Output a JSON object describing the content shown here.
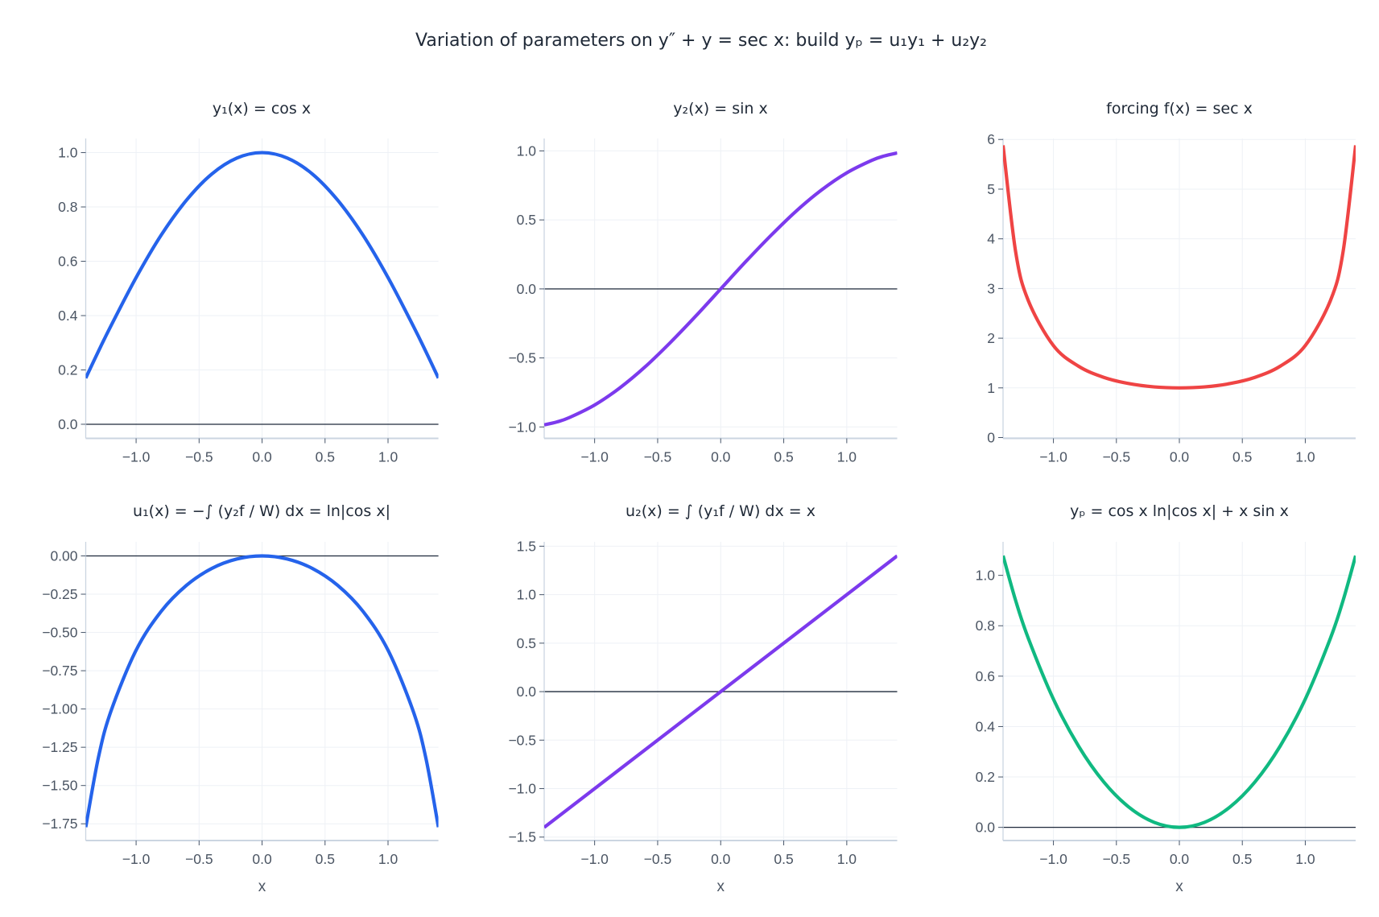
{
  "title": "Variation of parameters on  y″ + y = sec x:  build yₚ = u₁y₁ + u₂y₂",
  "chart_data": [
    {
      "type": "line",
      "title": "y₁(x) = cos x",
      "xlabel": "",
      "color": "#2563eb",
      "x": [
        -1.4,
        -1.3,
        -1.2,
        -1.0,
        -0.8,
        -0.6,
        -0.4,
        -0.2,
        0,
        0.2,
        0.4,
        0.6,
        0.8,
        1.0,
        1.2,
        1.3,
        1.4
      ],
      "y": [
        0.17,
        0.268,
        0.362,
        0.54,
        0.697,
        0.825,
        0.921,
        0.98,
        1.0,
        0.98,
        0.921,
        0.825,
        0.697,
        0.54,
        0.362,
        0.268,
        0.17
      ],
      "xlim": [
        -1.4,
        1.4
      ],
      "ylim": [
        -0.049,
        1.052
      ],
      "xticks": [
        -1.0,
        -0.5,
        0.0,
        0.5,
        1.0
      ],
      "yticks": [
        0.0,
        0.2,
        0.4,
        0.6,
        0.8,
        1.0
      ],
      "ydecimals": 1,
      "grid": true,
      "zeroline": true
    },
    {
      "type": "line",
      "title": "y₂(x) = sin x",
      "xlabel": "",
      "color": "#7c3aed",
      "x": [
        -1.4,
        -1.3,
        -1.2,
        -1.0,
        -0.8,
        -0.6,
        -0.4,
        -0.2,
        0,
        0.2,
        0.4,
        0.6,
        0.8,
        1.0,
        1.2,
        1.3,
        1.4
      ],
      "y": [
        -0.985,
        -0.964,
        -0.932,
        -0.841,
        -0.717,
        -0.565,
        -0.389,
        -0.199,
        0,
        0.199,
        0.389,
        0.565,
        0.717,
        0.841,
        0.932,
        0.964,
        0.985
      ],
      "xlim": [
        -1.4,
        1.4
      ],
      "ylim": [
        -1.077,
        1.09
      ],
      "xticks": [
        -1.0,
        -0.5,
        0.0,
        0.5,
        1.0
      ],
      "yticks": [
        -1.0,
        -0.5,
        0.0,
        0.5,
        1.0
      ],
      "ydecimals": 1,
      "grid": true,
      "zeroline": true
    },
    {
      "type": "line",
      "title": "forcing  f(x) = sec x",
      "xlabel": "",
      "color": "#ef4444",
      "x": [
        -1.4,
        -1.3,
        -1.2,
        -1.0,
        -0.8,
        -0.6,
        -0.4,
        -0.2,
        0,
        0.2,
        0.4,
        0.6,
        0.8,
        1.0,
        1.2,
        1.3,
        1.4
      ],
      "y": [
        5.883,
        3.738,
        2.76,
        1.851,
        1.435,
        1.212,
        1.086,
        1.02,
        1.0,
        1.02,
        1.086,
        1.212,
        1.435,
        1.851,
        2.76,
        3.738,
        5.883
      ],
      "xlim": [
        -1.4,
        1.4
      ],
      "ylim": [
        0,
        6.02
      ],
      "xticks": [
        -1.0,
        -0.5,
        0.0,
        0.5,
        1.0
      ],
      "yticks": [
        0,
        1,
        2,
        3,
        4,
        5,
        6
      ],
      "ydecimals": 0,
      "grid": true,
      "zeroline": false
    },
    {
      "type": "line",
      "title": "u₁(x) = −∫ (y₂f / W) dx = ln|cos x|",
      "xlabel": "x",
      "color": "#2563eb",
      "x": [
        -1.4,
        -1.3,
        -1.2,
        -1.0,
        -0.8,
        -0.6,
        -0.4,
        -0.2,
        0,
        0.2,
        0.4,
        0.6,
        0.8,
        1.0,
        1.2,
        1.3,
        1.4
      ],
      "y": [
        -1.772,
        -1.319,
        -1.015,
        -0.616,
        -0.361,
        -0.192,
        -0.082,
        -0.02,
        0,
        -0.02,
        -0.082,
        -0.192,
        -0.361,
        -0.616,
        -1.015,
        -1.319,
        -1.772
      ],
      "xlim": [
        -1.4,
        1.4
      ],
      "ylim": [
        -1.854,
        0.092
      ],
      "xticks": [
        -1.0,
        -0.5,
        0.0,
        0.5,
        1.0
      ],
      "yticks": [
        -1.75,
        -1.5,
        -1.25,
        -1.0,
        -0.75,
        -0.5,
        -0.25,
        0.0
      ],
      "ydecimals": 2,
      "grid": true,
      "zeroline": true
    },
    {
      "type": "line",
      "title": "u₂(x) = ∫ (y₁f / W) dx = x",
      "xlabel": "x",
      "color": "#7c3aed",
      "x": [
        -1.4,
        1.4
      ],
      "y": [
        -1.4,
        1.4
      ],
      "xlim": [
        -1.4,
        1.4
      ],
      "ylim": [
        -1.527,
        1.545
      ],
      "xticks": [
        -1.0,
        -0.5,
        0.0,
        0.5,
        1.0
      ],
      "yticks": [
        -1.5,
        -1.0,
        -0.5,
        0.0,
        0.5,
        1.0,
        1.5
      ],
      "ydecimals": 1,
      "grid": true,
      "zeroline": true
    },
    {
      "type": "line",
      "title": "yₚ = cos x ln|cos x| + x sin x",
      "xlabel": "x",
      "color": "#10b981",
      "x": [
        -1.4,
        -1.3,
        -1.2,
        -1.0,
        -0.8,
        -0.6,
        -0.4,
        -0.2,
        0,
        0.2,
        0.4,
        0.6,
        0.8,
        1.0,
        1.2,
        1.3,
        1.4
      ],
      "y": [
        1.078,
        0.9,
        0.751,
        0.509,
        0.322,
        0.18,
        0.08,
        0.02,
        0,
        0.02,
        0.08,
        0.18,
        0.322,
        0.509,
        0.751,
        0.9,
        1.078
      ],
      "xlim": [
        -1.4,
        1.4
      ],
      "ylim": [
        -0.049,
        1.133
      ],
      "xticks": [
        -1.0,
        -0.5,
        0.0,
        0.5,
        1.0
      ],
      "yticks": [
        0.0,
        0.2,
        0.4,
        0.6,
        0.8,
        1.0
      ],
      "ydecimals": 1,
      "grid": true,
      "zeroline": true
    }
  ]
}
